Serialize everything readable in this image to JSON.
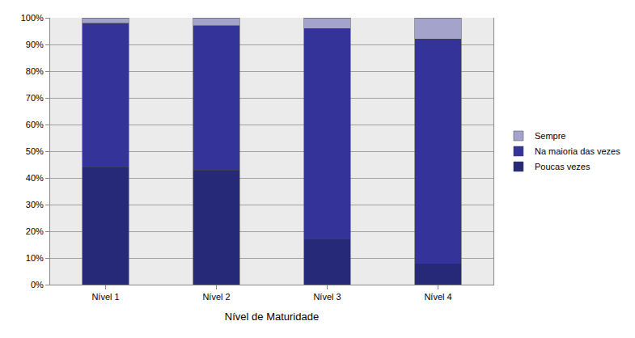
{
  "chart_data": {
    "type": "bar",
    "stacked": true,
    "x_label": "Nível de Maturidade",
    "categories": [
      "Nível 1",
      "Nível 2",
      "Nível 3",
      "Nível 4"
    ],
    "series": [
      {
        "name": "Poucas vezes",
        "color": "#262878",
        "values": [
          44,
          43,
          17,
          8
        ]
      },
      {
        "name": "Na maioria das vezes",
        "color": "#333399",
        "values": [
          54,
          54,
          79,
          84
        ]
      },
      {
        "name": "Sempre",
        "color": "#a3a3cc",
        "values": [
          2,
          3,
          4,
          8
        ]
      }
    ],
    "ylim": [
      0,
      100
    ],
    "yticks": [
      {
        "value": 0,
        "label": "0%"
      },
      {
        "value": 10,
        "label": "10%"
      },
      {
        "value": 20,
        "label": "20%"
      },
      {
        "value": 30,
        "label": "30%"
      },
      {
        "value": 40,
        "label": "40%"
      },
      {
        "value": 50,
        "label": "50%"
      },
      {
        "value": 60,
        "label": "60%"
      },
      {
        "value": 70,
        "label": "70%"
      },
      {
        "value": 80,
        "label": "80%"
      },
      {
        "value": 90,
        "label": "90%"
      },
      {
        "value": 100,
        "label": "100%"
      }
    ],
    "grid": true,
    "legend": "right"
  }
}
